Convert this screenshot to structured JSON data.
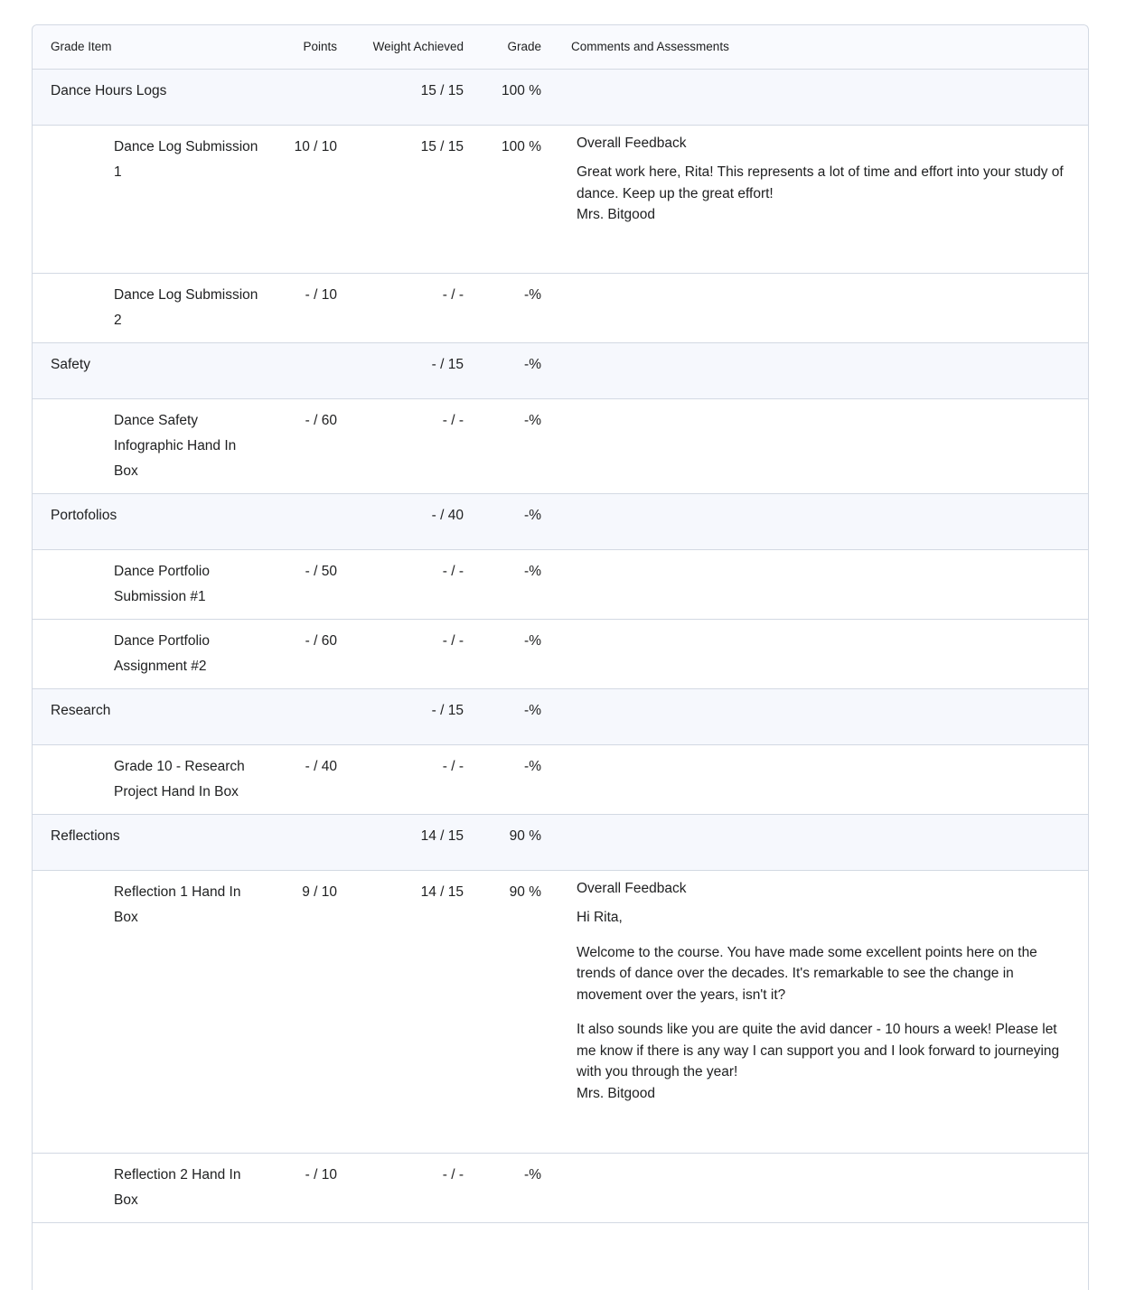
{
  "headers": {
    "item": "Grade Item",
    "points": "Points",
    "weight": "Weight Achieved",
    "grade": "Grade",
    "comments": "Comments and Assessments"
  },
  "rows": [
    {
      "type": "category",
      "name": "Dance Hours Logs",
      "points": "",
      "weight": "15 / 15",
      "grade": "100 %"
    },
    {
      "type": "item",
      "name": "Dance Log Submission 1",
      "points": "10 / 10",
      "weight": "15 / 15",
      "grade": "100 %",
      "feedback_title": "Overall Feedback",
      "feedback": [
        "Great work here, Rita! This represents a lot of time and effort into your study of dance. Keep up the great effort!\nMrs. Bitgood"
      ]
    },
    {
      "type": "item",
      "name": "Dance Log Submission 2",
      "points": "- / 10",
      "weight": "- / -",
      "grade": "-%"
    },
    {
      "type": "category",
      "name": "Safety",
      "points": "",
      "weight": "- / 15",
      "grade": "-%"
    },
    {
      "type": "item",
      "name": "Dance Safety Infographic Hand In Box",
      "points": "- / 60",
      "weight": "- / -",
      "grade": "-%"
    },
    {
      "type": "category",
      "name": "Portofolios",
      "points": "",
      "weight": "- / 40",
      "grade": "-%"
    },
    {
      "type": "item",
      "name": "Dance Portfolio Submission #1",
      "points": "- / 50",
      "weight": "- / -",
      "grade": "-%"
    },
    {
      "type": "item",
      "name": "Dance Portfolio Assignment #2",
      "points": "- / 60",
      "weight": "- / -",
      "grade": "-%"
    },
    {
      "type": "category",
      "name": "Research",
      "points": "",
      "weight": "- / 15",
      "grade": "-%"
    },
    {
      "type": "item",
      "name": "Grade 10 - Research Project Hand In Box",
      "points": "- / 40",
      "weight": "- / -",
      "grade": "-%"
    },
    {
      "type": "category",
      "name": "Reflections",
      "points": "",
      "weight": "14 / 15",
      "grade": "90 %"
    },
    {
      "type": "item",
      "name": "Reflection 1 Hand In Box",
      "points": "9 / 10",
      "weight": "14 / 15",
      "grade": "90 %",
      "feedback_title": "Overall Feedback",
      "feedback": [
        "Hi Rita,",
        "Welcome to the course. You have made some excellent points here on the trends of dance over the decades. It's remarkable to see the change in movement over the years, isn't it?",
        "It also sounds like you are quite the avid dancer - 10 hours a week! Please let me know if there is any way I can support you and I look forward to journeying with you through the year!\nMrs. Bitgood"
      ]
    },
    {
      "type": "item",
      "name": "Reflection 2 Hand In Box",
      "points": "- / 10",
      "weight": "- / -",
      "grade": "-%"
    }
  ]
}
